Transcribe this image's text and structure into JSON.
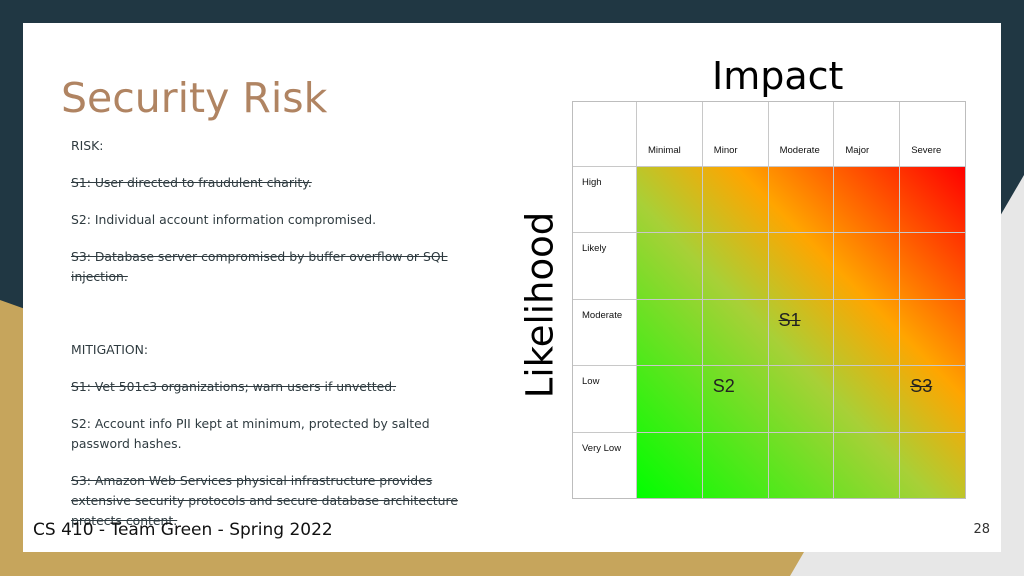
{
  "slide": {
    "title": "Security Risk",
    "risk_heading": "RISK:",
    "risks": [
      {
        "text": "S1: User directed to fraudulent charity.",
        "struck": true
      },
      {
        "text": "S2: Individual account information compromised.",
        "struck": false
      },
      {
        "text": "S3: Database server compromised by buffer overflow or SQL injection.",
        "struck": true
      }
    ],
    "mitigation_heading": "MITIGATION:",
    "mitigations": [
      {
        "text": "S1: Vet 501c3 organizations; warn users if unvetted.",
        "struck": true
      },
      {
        "text": "S2: Account info PII kept at minimum, protected by salted password hashes.",
        "struck": false
      },
      {
        "text": "S3: Amazon Web Services physical infrastructure provides extensive security protocols and secure database architecture protects content.",
        "struck": true
      }
    ],
    "footer": "CS 410 - Team Green - Spring 2022",
    "page_number": "28"
  },
  "matrix": {
    "impact_label": "Impact",
    "likelihood_label": "Likelihood",
    "impact_levels": [
      "Minimal",
      "Minor",
      "Moderate",
      "Major",
      "Severe"
    ],
    "likelihood_levels": [
      "High",
      "Likely",
      "Moderate",
      "Low",
      "Very Low"
    ],
    "markers": [
      {
        "label": "S1",
        "impact": "Moderate",
        "likelihood": "Moderate",
        "struck": true
      },
      {
        "label": "S2",
        "impact": "Minor",
        "likelihood": "Low",
        "struck": false
      },
      {
        "label": "S3",
        "impact": "Severe",
        "likelihood": "Low",
        "struck": true
      }
    ],
    "colors": {
      "low": "#00ff00",
      "mid": "#ffa500",
      "high": "#ff0000"
    }
  }
}
